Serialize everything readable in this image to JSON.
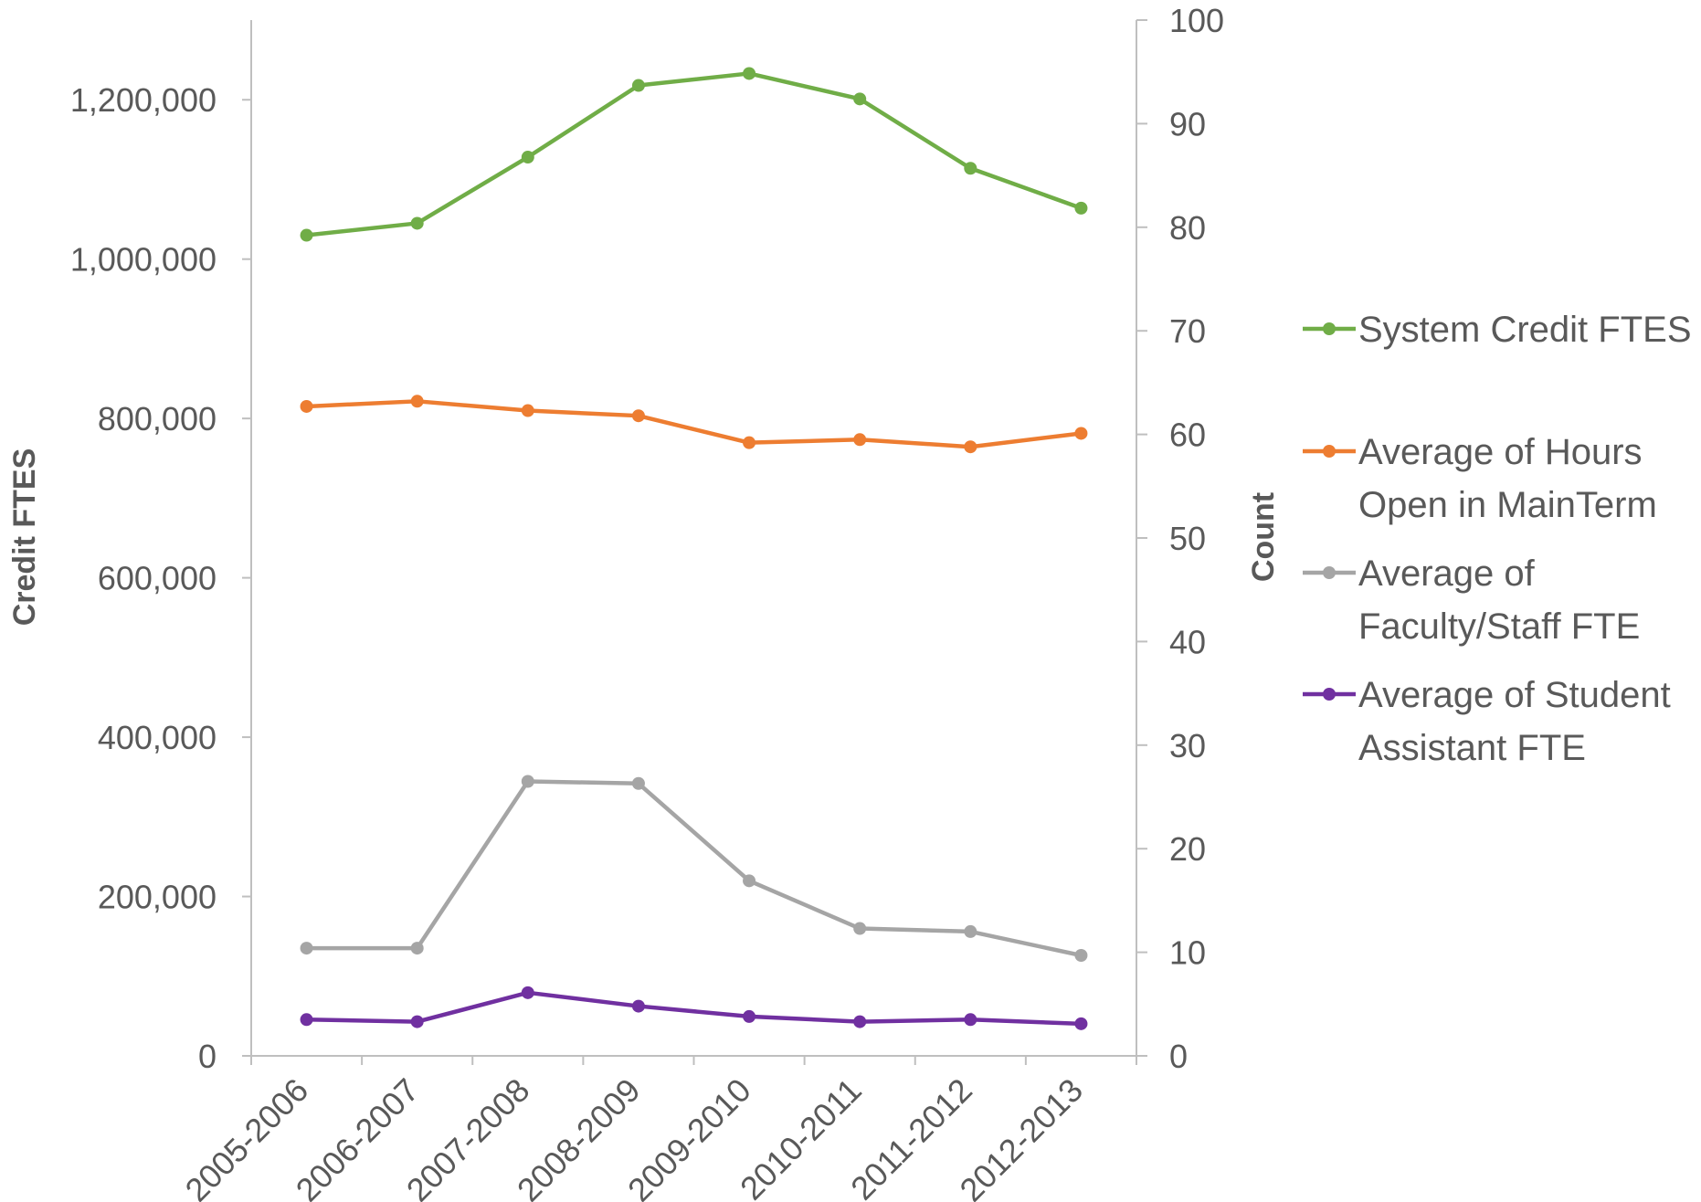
{
  "chart_data": {
    "type": "line",
    "categories": [
      "2005-2006",
      "2006-2007",
      "2007-2008",
      "2008-2009",
      "2009-2010",
      "2010-2011",
      "2011-2012",
      "2012-2013"
    ],
    "y_left": {
      "label": "Credit FTES",
      "ylim": [
        0,
        1300000
      ],
      "ticks": [
        0,
        200000,
        400000,
        600000,
        800000,
        1000000,
        1200000
      ],
      "tick_labels": [
        "0",
        "200,000",
        "400,000",
        "600,000",
        "800,000",
        "1,000,000",
        "1,200,000"
      ]
    },
    "y_right": {
      "label": "Count",
      "ylim": [
        0,
        100
      ],
      "ticks": [
        0,
        10,
        20,
        30,
        40,
        50,
        60,
        70,
        80,
        90,
        100
      ],
      "tick_labels": [
        "0",
        "10",
        "20",
        "30",
        "40",
        "50",
        "60",
        "70",
        "80",
        "90",
        "100"
      ]
    },
    "series": [
      {
        "name": "System Credit FTES",
        "legend_lines": [
          "System Credit FTES"
        ],
        "axis": "left",
        "color": "#70ad47",
        "values": [
          1030000,
          1045000,
          1128000,
          1218000,
          1233000,
          1201000,
          1114000,
          1064000
        ]
      },
      {
        "name": "Average of Hours Open in MainTerm",
        "legend_lines": [
          "Average of Hours",
          "Open in MainTerm"
        ],
        "axis": "right",
        "color": "#ed7d31",
        "values": [
          62.7,
          63.2,
          62.3,
          61.8,
          59.2,
          59.5,
          58.8,
          60.1
        ]
      },
      {
        "name": "Average of Faculty/Staff FTE",
        "legend_lines": [
          "Average of",
          "Faculty/Staff FTE"
        ],
        "axis": "right",
        "color": "#a5a5a5",
        "values": [
          10.4,
          10.4,
          26.5,
          26.3,
          16.9,
          12.3,
          12.0,
          9.7
        ]
      },
      {
        "name": "Average of Student Assistant FTE",
        "legend_lines": [
          "Average of Student",
          "Assistant FTE"
        ],
        "axis": "right",
        "color": "#7030a0",
        "values": [
          3.5,
          3.3,
          6.1,
          4.8,
          3.8,
          3.3,
          3.5,
          3.1
        ]
      }
    ],
    "legend_position": "right",
    "grid": false
  }
}
